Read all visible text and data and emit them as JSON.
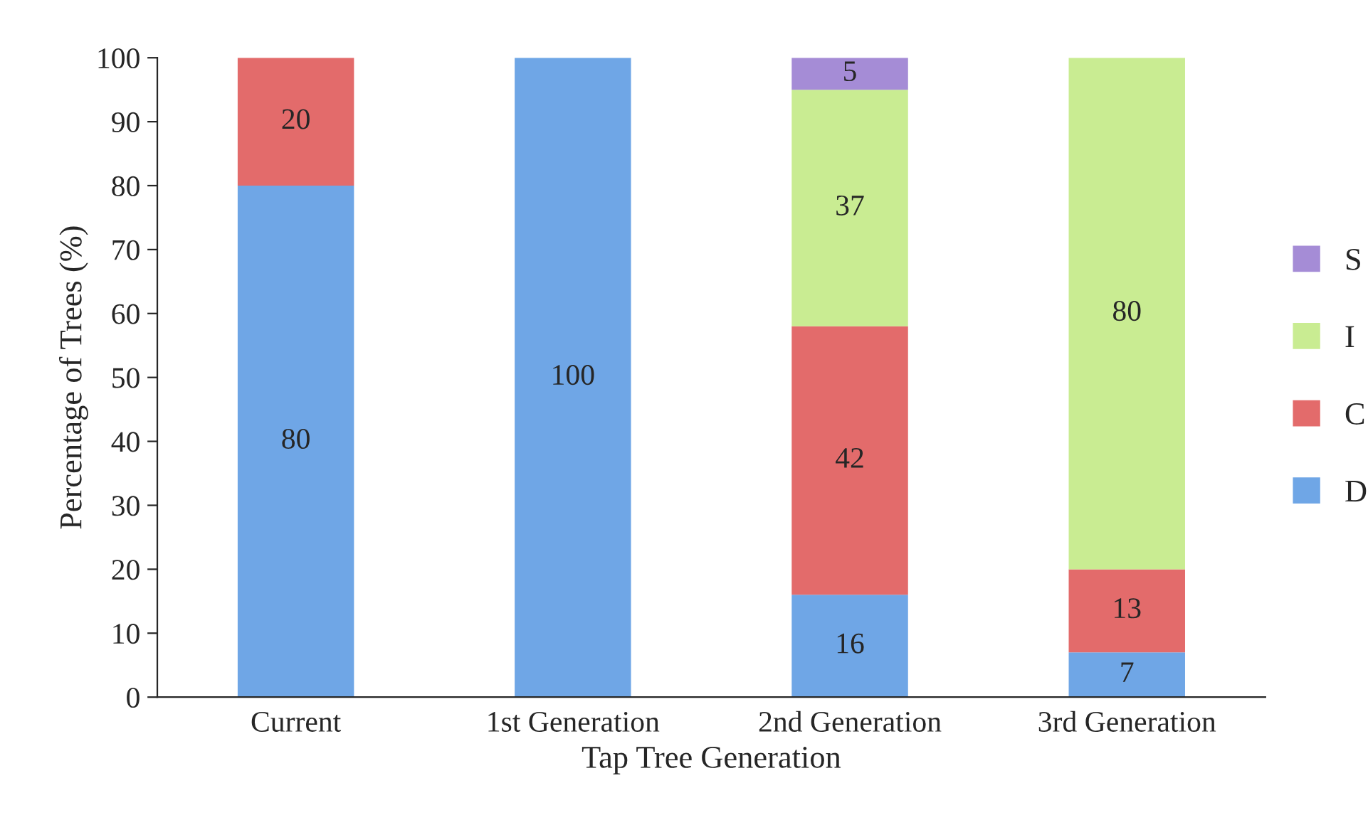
{
  "chart_data": {
    "type": "bar",
    "stacked": true,
    "xlabel": "Tap Tree Generation",
    "ylabel": "Percentage of Trees (%)",
    "categories": [
      "Current",
      "1st Generation",
      "2nd Generation",
      "3rd Generation"
    ],
    "series": [
      {
        "name": "D",
        "color": "#6fa6e6",
        "values": [
          80,
          100,
          16,
          7
        ],
        "value_labels": [
          "80",
          "100",
          "16",
          "7"
        ]
      },
      {
        "name": "C",
        "color": "#e36b6b",
        "values": [
          20,
          0,
          42,
          13
        ],
        "value_labels": [
          "20",
          null,
          "42",
          "13"
        ]
      },
      {
        "name": "I",
        "color": "#c9ec92",
        "values": [
          0,
          0,
          37,
          80
        ],
        "value_labels": [
          null,
          null,
          "37",
          "80"
        ]
      },
      {
        "name": "S",
        "color": "#a58cd6",
        "values": [
          0,
          0,
          5,
          0
        ],
        "value_labels": [
          null,
          null,
          "5",
          null
        ]
      }
    ],
    "ylim": [
      0,
      100
    ],
    "yticks": [
      0,
      10,
      20,
      30,
      40,
      50,
      60,
      70,
      80,
      90,
      100
    ],
    "legend": "right",
    "grid": false
  }
}
